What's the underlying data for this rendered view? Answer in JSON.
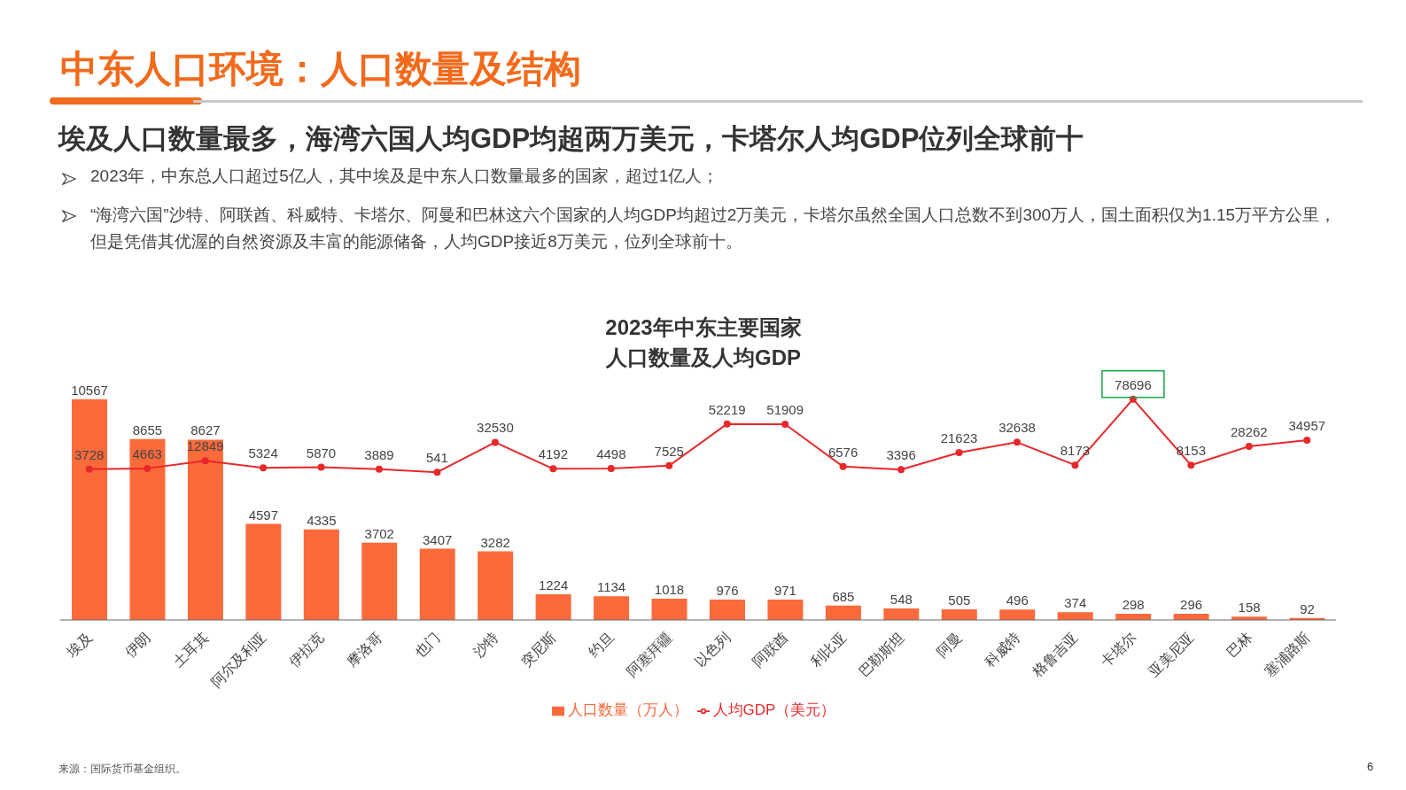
{
  "chart_data": {
    "type": "bar",
    "title": "2023年中东主要国家人口数量及人均GDP",
    "annotations": [
      "中东人口环境：人口数量及结构",
      "埃及人口数量最多，海湾六国人均GDP均超两万美元，卡塔尔人均GDP位列全球前十",
      "2023年，中东总人口超过5亿人，其中埃及是中东人口数量最多的国家，超过1亿人；",
      "“海湾六国”沙特、阿联酋、科威特、卡塔尔、阿曼和巴林这六个国家的人均GDP均超过2万美元，卡塔尔虽然全国人口总数不到300万人，国土面积仅为1.15万平方公里，但是凭借其优渥的自然资源及丰富的能源储备，人均GDP接近8万美元，位列全球前十。",
      "来源：国际货币基金组织。",
      "6"
    ],
    "categories": [
      "埃及",
      "伊朗",
      "土耳其",
      "阿尔及利亚",
      "伊拉克",
      "摩洛哥",
      "也门",
      "沙特",
      "突尼斯",
      "约旦",
      "阿塞拜疆",
      "以色列",
      "阿联酋",
      "利比亚",
      "巴勒斯坦",
      "阿曼",
      "科威特",
      "格鲁吉亚",
      "卡塔尔",
      "亚美尼亚",
      "巴林",
      "塞浦路斯"
    ],
    "series": [
      {
        "name": "人口数量（万人）",
        "color": "#fa6a3b",
        "values": [
          10567,
          8655,
          8627,
          4597,
          4335,
          3702,
          3407,
          3282,
          1224,
          1134,
          1018,
          976,
          971,
          685,
          548,
          505,
          496,
          374,
          298,
          296,
          158,
          92
        ]
      },
      {
        "name": "人均GDP（美元）",
        "type": "line",
        "axis": "y2",
        "color": "#e8282b",
        "values": [
          3728,
          4663,
          12849,
          5324,
          5870,
          3889,
          541,
          32530,
          4192,
          4498,
          7525,
          52219,
          51909,
          6576,
          3396,
          21623,
          32638,
          8173,
          78696,
          8153,
          28262,
          34957
        ]
      }
    ],
    "marker": "circle",
    "legend": "bottom",
    "data_labels": true
  }
}
